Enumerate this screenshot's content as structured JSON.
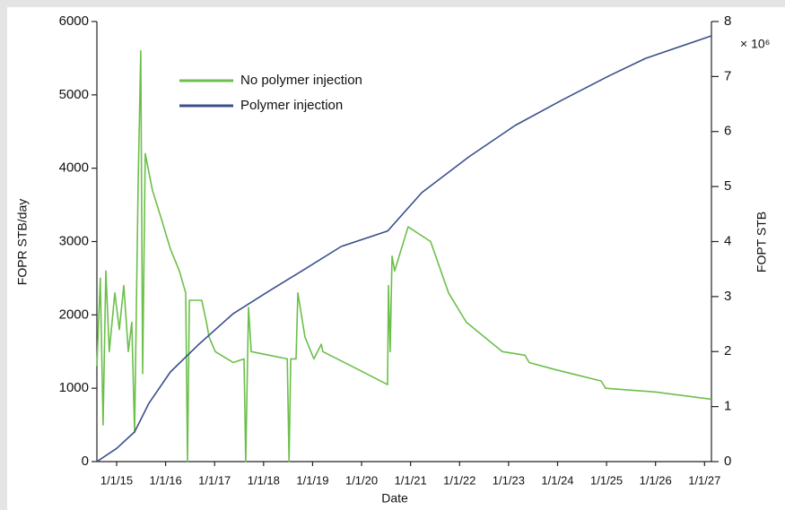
{
  "chart_data": {
    "type": "line",
    "xlabel": "Date",
    "ylabel": "FOPR STB/day",
    "y2label": "FOPT STB",
    "y2multiplier": "× 10⁶",
    "xlim": [
      "8/6/14",
      "2/22/27"
    ],
    "xticks": [
      "1/1/15",
      "1/1/16",
      "1/1/17",
      "1/1/18",
      "1/1/19",
      "1/1/20",
      "1/1/21",
      "1/1/22",
      "1/1/23",
      "1/1/24",
      "1/1/25",
      "1/1/26",
      "1/1/27"
    ],
    "ylim": [
      0,
      6000
    ],
    "yticks": [
      0,
      1000,
      2000,
      3000,
      4000,
      5000,
      6000
    ],
    "y2lim": [
      0,
      8
    ],
    "y2ticks": [
      0,
      1,
      2,
      3,
      4,
      5,
      6,
      7,
      8
    ],
    "legend": "upper left",
    "series": [
      {
        "name": "No polymer injection",
        "color": "#6cbf4a",
        "x": [
          "8/6/14",
          "9/1/14",
          "9/22/14",
          "10/12/14",
          "11/7/14",
          "12/18/14",
          "1/21/15",
          "2/24/15",
          "3/27/15",
          "4/23/15",
          "5/13/15",
          "6/9/15",
          "6/29/15",
          "7/12/15",
          "8/1/15",
          "9/24/15",
          "12/1/15",
          "2/6/16",
          "4/12/16",
          "5/29/16",
          "6/12/16",
          "6/26/16",
          "9/27/16",
          "10/31/16",
          "11/20/16",
          "1/6/17",
          "5/18/17",
          "8/7/17",
          "8/20/17",
          "9/10/17",
          "9/30/17",
          "2/11/18",
          "6/25/18",
          "7/8/18",
          "7/21/18",
          "8/30/18",
          "9/13/18",
          "11/5/18",
          "1/11/19",
          "3/5/19",
          "3/17/19",
          "12/12/19",
          "7/12/20",
          "7/19/20",
          "8/1/20",
          "8/15/20",
          "9/4/20",
          "12/13/20",
          "5/29/21",
          "10/10/21",
          "2/21/22",
          "11/15/22",
          "5/1/23",
          "6/3/23",
          "12/22/23",
          "11/21/24",
          "12/24/24",
          "12/28/25",
          "2/22/27"
        ],
        "values": [
          1300,
          2500,
          500,
          2600,
          1500,
          2300,
          1800,
          2400,
          1500,
          1900,
          400,
          3800,
          5600,
          1200,
          4200,
          3700,
          3300,
          2900,
          2600,
          2300,
          0,
          2200,
          2200,
          1900,
          1700,
          1500,
          1350,
          1400,
          0,
          2100,
          1500,
          1450,
          1400,
          0,
          1400,
          1400,
          2300,
          1700,
          1400,
          1600,
          1500,
          1250,
          1050,
          2400,
          1500,
          2800,
          2600,
          3200,
          3000,
          2300,
          1900,
          1500,
          1450,
          1350,
          1250,
          1100,
          1000,
          950,
          850
        ]
      },
      {
        "name": "Polymer injection",
        "color": "#3b4f8c",
        "axis": "y2",
        "x": [
          "8/6/14",
          "1/1/15",
          "5/13/15",
          "8/29/15",
          "2/6/16",
          "8/30/16",
          "5/18/17",
          "2/11/18",
          "11/5/18",
          "8/1/19",
          "7/12/20",
          "3/24/21",
          "3/9/22",
          "2/19/23",
          "2/2/24",
          "1/17/25",
          "10/18/25",
          "2/22/27"
        ],
        "values": [
          0,
          0.24,
          0.54,
          1.06,
          1.63,
          2.12,
          2.69,
          3.1,
          3.5,
          3.91,
          4.19,
          4.89,
          5.54,
          6.11,
          6.57,
          7.01,
          7.33,
          7.74
        ]
      }
    ]
  }
}
